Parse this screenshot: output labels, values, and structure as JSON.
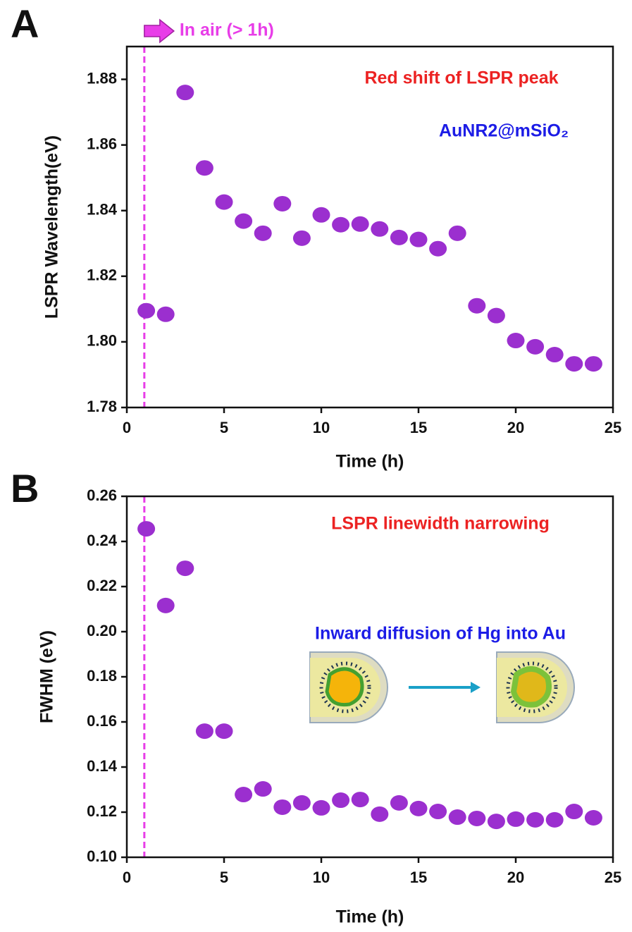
{
  "chart_data": [
    {
      "type": "scatter",
      "panel": "A",
      "x_label": "Time (h)",
      "y_label": "LSPR Wavelength(eV)",
      "xlim": [
        0,
        25
      ],
      "ylim": [
        1.78,
        1.89
      ],
      "xticks": [
        0,
        5,
        10,
        15,
        20,
        25
      ],
      "yticks": [
        1.78,
        {
          "value": 1.8,
          "label": "1.80"
        },
        1.82,
        1.84,
        1.86,
        1.88
      ],
      "marker_x": 0.9,
      "marker_color": "#e83de8",
      "marker_label": "In air (> 1h)",
      "annotations": [
        {
          "text": "Red shift of LSPR peak",
          "color": "#ec2222"
        },
        {
          "text": "AuNR2@mSiO₂",
          "color": "#1c1ce6"
        }
      ],
      "series": [
        {
          "color": "#9b2fcf",
          "x": [
            1,
            2,
            3,
            4,
            5,
            6,
            7,
            8,
            9,
            10,
            11,
            12,
            13,
            14,
            15,
            16,
            17,
            18,
            19,
            20,
            21,
            22,
            23,
            24
          ],
          "values": [
            1.8095,
            1.8084,
            1.876,
            1.853,
            1.8426,
            1.8368,
            1.8331,
            1.8421,
            1.8316,
            1.8387,
            1.8357,
            1.8359,
            1.8344,
            1.8318,
            1.8312,
            1.8284,
            1.8331,
            1.811,
            1.808,
            1.8004,
            1.7985,
            1.7961,
            1.7933,
            1.7933
          ]
        }
      ]
    },
    {
      "type": "scatter",
      "panel": "B",
      "x_label": "Time (h)",
      "y_label": "FWHM (eV)",
      "xlim": [
        0,
        25
      ],
      "ylim": [
        0.1,
        0.26
      ],
      "xticks": [
        0,
        5,
        10,
        15,
        20,
        25
      ],
      "yticks": [
        {
          "value": 0.1,
          "label": "0.10"
        },
        0.12,
        0.14,
        0.16,
        0.18,
        {
          "value": 0.2,
          "label": "0.20"
        },
        0.22,
        0.24,
        0.26
      ],
      "marker_x": 0.9,
      "marker_color": "#e83de8",
      "annotations": [
        {
          "text": "LSPR linewidth  narrowing",
          "color": "#ec2222"
        },
        {
          "text": "Inward diffusion of Hg into Au",
          "color": "#1c1ce6"
        }
      ],
      "series": [
        {
          "color": "#9b2fcf",
          "x": [
            1,
            2,
            3,
            4,
            5,
            6,
            7,
            8,
            9,
            10,
            11,
            12,
            13,
            14,
            15,
            16,
            17,
            18,
            19,
            20,
            21,
            22,
            23,
            24
          ],
          "values": [
            0.2456,
            0.2116,
            0.2281,
            0.1559,
            0.1559,
            0.1278,
            0.1303,
            0.1222,
            0.1241,
            0.1219,
            0.1253,
            0.1256,
            0.1191,
            0.1241,
            0.1216,
            0.1203,
            0.1178,
            0.1172,
            0.1159,
            0.1169,
            0.1166,
            0.1166,
            0.1203,
            0.1175
          ]
        }
      ]
    }
  ]
}
